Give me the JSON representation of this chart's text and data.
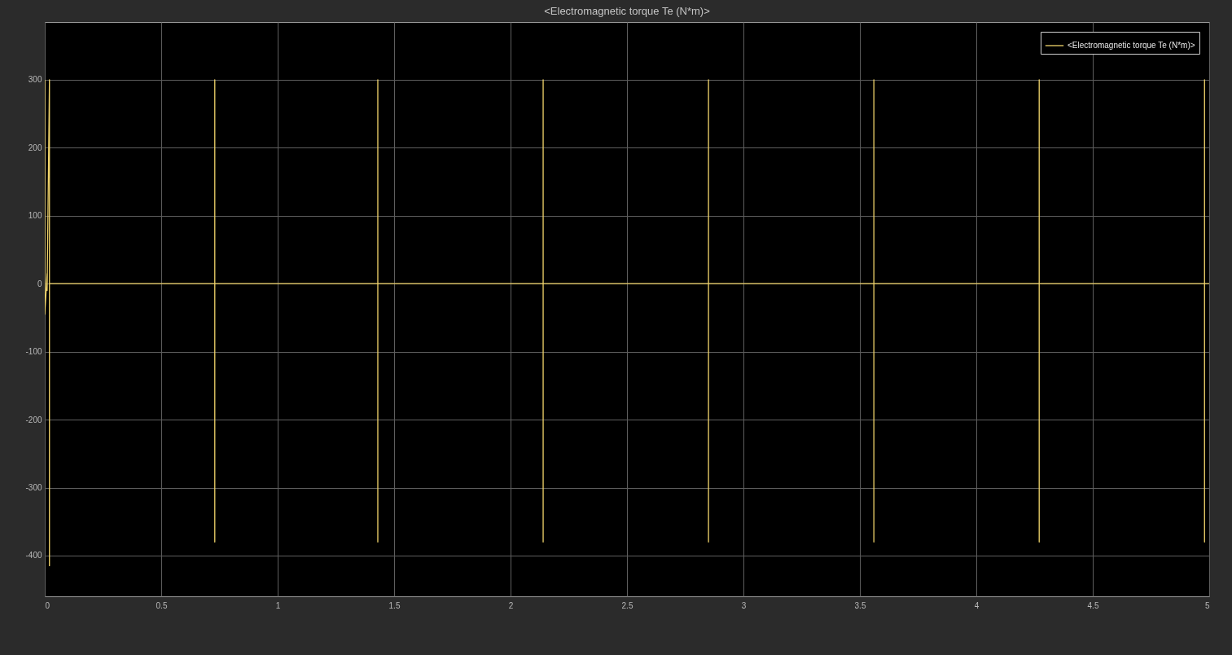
{
  "chart_data": {
    "type": "line",
    "title": "<Electromagnetic torque Te (N*m)>",
    "series": [
      {
        "name": "<Electromagnetic torque Te (N*m)>",
        "color": "#f2d56b",
        "x": [
          0,
          0,
          0.01,
          0.01,
          0.02,
          0.02,
          0.02,
          0.02,
          0.73,
          0.73,
          0.73,
          0.73,
          0.73,
          1.43,
          1.43,
          1.43,
          1.43,
          1.43,
          2.14,
          2.14,
          2.14,
          2.14,
          2.14,
          2.85,
          2.85,
          2.85,
          2.85,
          2.85,
          3.56,
          3.56,
          3.56,
          3.56,
          3.56,
          4.27,
          4.27,
          4.27,
          4.27,
          4.27,
          4.98,
          4.98,
          4.98,
          4.98,
          4.98,
          5
        ],
        "values": [
          300,
          -45,
          15,
          -10,
          300,
          -415,
          50,
          0,
          0,
          300,
          -380,
          50,
          0,
          0,
          300,
          -380,
          50,
          0,
          0,
          300,
          -380,
          50,
          0,
          0,
          300,
          -380,
          50,
          0,
          0,
          300,
          -380,
          50,
          0,
          0,
          300,
          -380,
          50,
          0,
          0,
          300,
          -380,
          50,
          0,
          0
        ]
      }
    ],
    "xlim": [
      0,
      5
    ],
    "xticks": [
      0,
      0.5,
      1,
      1.5,
      2,
      2.5,
      3,
      3.5,
      4,
      4.5,
      5
    ],
    "ylim": [
      -460,
      385
    ],
    "yticks": [
      -400,
      -300,
      -200,
      -100,
      0,
      100,
      200,
      300
    ],
    "grid": true,
    "legend": "top right"
  }
}
